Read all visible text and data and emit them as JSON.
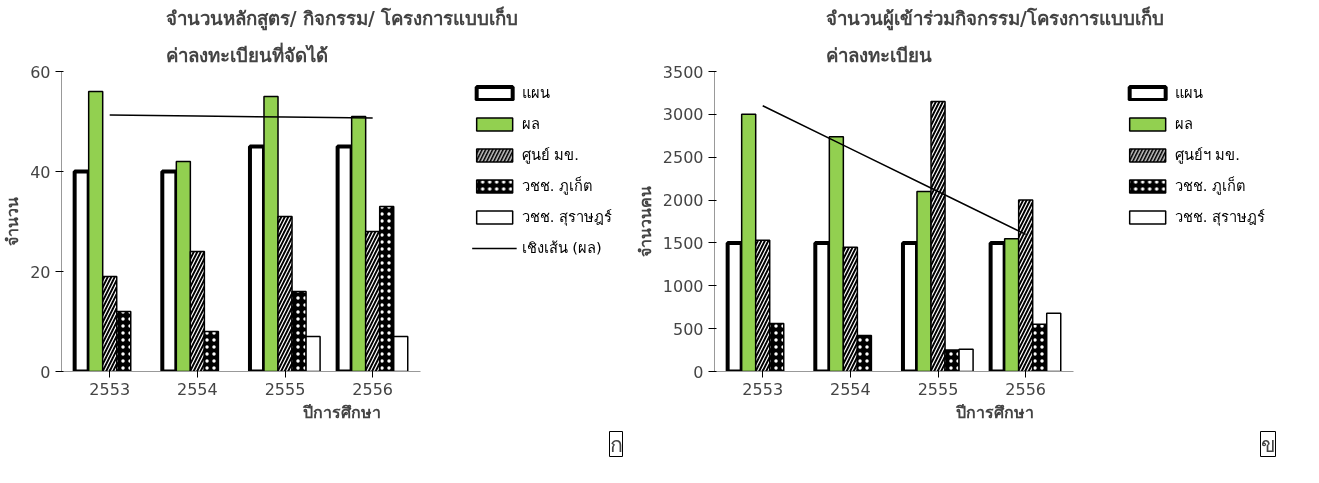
{
  "chart_data": [
    {
      "type": "bar",
      "title": "จำนวนหลักสูตร/ กิจกรรม/ โครงการแบบเก็บ\nค่าลงทะเบียนที่จัดได้",
      "xlabel": "ปีการศึกษา",
      "ylabel": "จำนวน",
      "categories": [
        "2553",
        "2554",
        "2555",
        "2556"
      ],
      "ylim": [
        0,
        60
      ],
      "yticks": [
        0,
        20,
        40,
        60
      ],
      "grid": false,
      "legend": "right",
      "annotations": [
        "ก"
      ],
      "series": [
        {
          "name": "แผน",
          "color": "#ffffff",
          "values": [
            40,
            40,
            45,
            45
          ]
        },
        {
          "name": "ผล",
          "color": "#92d050",
          "values": [
            56,
            42,
            55,
            51
          ]
        },
        {
          "name": "ศูนย์ มข.",
          "color": "#000000",
          "values": [
            19,
            24,
            31,
            28
          ]
        },
        {
          "name": "วชช. ภูเก็ต",
          "color": "#000000",
          "values": [
            12,
            8,
            16,
            33
          ]
        },
        {
          "name": "วชช. สุราษฎร์",
          "color": "#ffffff",
          "values": [
            null,
            null,
            7,
            7
          ]
        },
        {
          "name": "เชิงเส้น (ผล)",
          "type": "line",
          "color": "#000000",
          "values": [
            51.3,
            51.1,
            50.9,
            50.7
          ]
        }
      ]
    },
    {
      "type": "bar",
      "title": "จำนวนผู้เข้าร่วมกิจกรรม/โครงการแบบเก็บ\nค่าลงทะเบียน",
      "xlabel": "ปีการศึกษา",
      "ylabel": "จำนวนคน",
      "categories": [
        "2553",
        "2554",
        "2555",
        "2556"
      ],
      "ylim": [
        0,
        3500
      ],
      "yticks": [
        0,
        500,
        1000,
        1500,
        2000,
        2500,
        3000,
        3500
      ],
      "grid": false,
      "legend": "right",
      "annotations": [
        "ข"
      ],
      "series": [
        {
          "name": "แผน",
          "color": "#ffffff",
          "values": [
            1500,
            1500,
            1500,
            1500
          ]
        },
        {
          "name": "ผล",
          "color": "#92d050",
          "values": [
            3000,
            2740,
            2100,
            1550
          ]
        },
        {
          "name": "ศูนย์ฯ มข.",
          "color": "#000000",
          "values": [
            1530,
            1450,
            3150,
            2000
          ]
        },
        {
          "name": "วชช. ภูเก็ต",
          "color": "#000000",
          "values": [
            560,
            420,
            250,
            550
          ]
        },
        {
          "name": "วชช. สุราษฎร์",
          "color": "#ffffff",
          "values": [
            null,
            null,
            260,
            680
          ]
        },
        {
          "type": "line",
          "color": "#000000",
          "values": [
            3100,
            2600,
            2100,
            1600
          ]
        }
      ]
    }
  ]
}
